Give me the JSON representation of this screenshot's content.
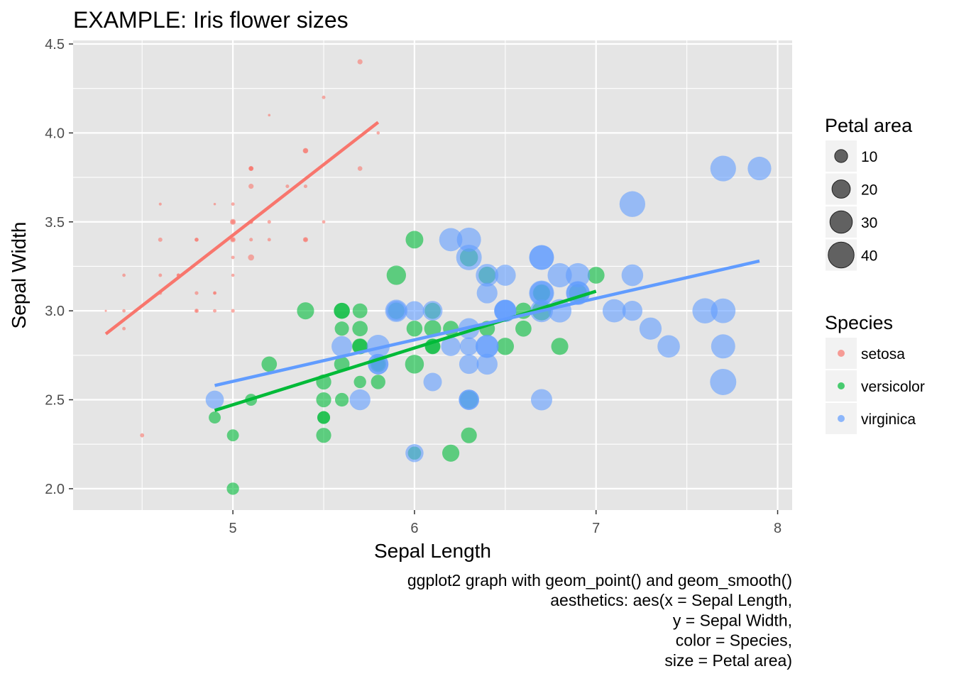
{
  "chart_data": {
    "type": "scatter",
    "title": "EXAMPLE: Iris flower sizes",
    "xlabel": "Sepal Length",
    "ylabel": "Sepal Width",
    "caption": [
      "ggplot2 graph with geom_point() and geom_smooth()",
      "aesthetics: aes(x = Sepal Length,",
      "y = Sepal Width,",
      "color = Species,",
      "size = Petal area)"
    ],
    "xlim": [
      4.12,
      8.08
    ],
    "ylim": [
      1.88,
      4.52
    ],
    "x_ticks": [
      5,
      6,
      7,
      8
    ],
    "x_tick_labels": [
      "5",
      "6",
      "7",
      "8"
    ],
    "y_ticks": [
      2.0,
      2.5,
      3.0,
      3.5,
      4.0,
      4.5
    ],
    "y_tick_labels": [
      "2.0",
      "2.5",
      "3.0",
      "3.5",
      "4.0",
      "4.5"
    ],
    "grid": true,
    "background": "#e5e5e5",
    "legend_position": "right",
    "size_legend": {
      "title": "Petal area",
      "breaks": [
        10,
        20,
        30,
        40
      ],
      "labels": [
        "10",
        "20",
        "30",
        "40"
      ],
      "color": "#000000"
    },
    "color_legend": {
      "title": "Species",
      "labels": [
        "setosa",
        "versicolor",
        "virginica"
      ]
    },
    "series": [
      {
        "name": "setosa",
        "color": "#F8766D",
        "points": [
          {
            "x": 4.3,
            "y": 3.0,
            "size": 0.11
          },
          {
            "x": 4.4,
            "y": 2.9,
            "size": 0.28
          },
          {
            "x": 4.4,
            "y": 3.0,
            "size": 0.26
          },
          {
            "x": 4.4,
            "y": 3.2,
            "size": 0.26
          },
          {
            "x": 4.5,
            "y": 2.3,
            "size": 0.39
          },
          {
            "x": 4.6,
            "y": 3.1,
            "size": 0.3
          },
          {
            "x": 4.6,
            "y": 3.2,
            "size": 0.28
          },
          {
            "x": 4.6,
            "y": 3.4,
            "size": 0.42
          },
          {
            "x": 4.6,
            "y": 3.6,
            "size": 0.2
          },
          {
            "x": 4.7,
            "y": 3.2,
            "size": 0.26
          },
          {
            "x": 4.7,
            "y": 3.2,
            "size": 0.32
          },
          {
            "x": 4.8,
            "y": 3.4,
            "size": 0.32
          },
          {
            "x": 4.8,
            "y": 3.0,
            "size": 0.14
          },
          {
            "x": 4.8,
            "y": 3.4,
            "size": 0.38
          },
          {
            "x": 4.8,
            "y": 3.0,
            "size": 0.42
          },
          {
            "x": 4.8,
            "y": 3.1,
            "size": 0.32
          },
          {
            "x": 4.9,
            "y": 3.0,
            "size": 0.28
          },
          {
            "x": 4.9,
            "y": 3.1,
            "size": 0.15
          },
          {
            "x": 4.9,
            "y": 3.1,
            "size": 0.3
          },
          {
            "x": 4.9,
            "y": 3.6,
            "size": 0.14
          },
          {
            "x": 5.0,
            "y": 3.6,
            "size": 0.28
          },
          {
            "x": 5.0,
            "y": 3.4,
            "size": 0.3
          },
          {
            "x": 5.0,
            "y": 3.0,
            "size": 0.32
          },
          {
            "x": 5.0,
            "y": 3.4,
            "size": 0.64
          },
          {
            "x": 5.0,
            "y": 3.2,
            "size": 0.24
          },
          {
            "x": 5.0,
            "y": 3.5,
            "size": 0.78
          },
          {
            "x": 5.0,
            "y": 3.5,
            "size": 0.39
          },
          {
            "x": 5.0,
            "y": 3.3,
            "size": 0.28
          },
          {
            "x": 5.1,
            "y": 3.5,
            "size": 0.28
          },
          {
            "x": 5.1,
            "y": 3.5,
            "size": 0.42
          },
          {
            "x": 5.1,
            "y": 3.8,
            "size": 0.57
          },
          {
            "x": 5.1,
            "y": 3.7,
            "size": 0.6
          },
          {
            "x": 5.1,
            "y": 3.3,
            "size": 0.85
          },
          {
            "x": 5.1,
            "y": 3.4,
            "size": 0.3
          },
          {
            "x": 5.1,
            "y": 3.8,
            "size": 0.48
          },
          {
            "x": 5.1,
            "y": 3.8,
            "size": 0.32
          },
          {
            "x": 5.2,
            "y": 3.5,
            "size": 0.3
          },
          {
            "x": 5.2,
            "y": 3.4,
            "size": 0.28
          },
          {
            "x": 5.2,
            "y": 4.1,
            "size": 0.15
          },
          {
            "x": 5.3,
            "y": 3.7,
            "size": 0.3
          },
          {
            "x": 5.4,
            "y": 3.9,
            "size": 0.68
          },
          {
            "x": 5.4,
            "y": 3.7,
            "size": 0.3
          },
          {
            "x": 5.4,
            "y": 3.9,
            "size": 0.52
          },
          {
            "x": 5.4,
            "y": 3.4,
            "size": 0.34
          },
          {
            "x": 5.4,
            "y": 3.4,
            "size": 0.6
          },
          {
            "x": 5.5,
            "y": 4.2,
            "size": 0.28
          },
          {
            "x": 5.5,
            "y": 3.5,
            "size": 0.26
          },
          {
            "x": 5.7,
            "y": 4.4,
            "size": 0.6
          },
          {
            "x": 5.7,
            "y": 3.8,
            "size": 0.51
          },
          {
            "x": 5.8,
            "y": 4.0,
            "size": 0.24
          }
        ],
        "trend": {
          "x": [
            4.3,
            5.8
          ],
          "y": [
            2.87,
            4.06
          ]
        }
      },
      {
        "name": "versicolor",
        "color": "#00BA38",
        "points": [
          {
            "x": 4.9,
            "y": 2.4,
            "size": 3.3
          },
          {
            "x": 5.0,
            "y": 2.3,
            "size": 3.3
          },
          {
            "x": 5.0,
            "y": 2.0,
            "size": 3.5
          },
          {
            "x": 5.1,
            "y": 2.5,
            "size": 3.3
          },
          {
            "x": 5.2,
            "y": 2.7,
            "size": 5.46
          },
          {
            "x": 5.4,
            "y": 3.0,
            "size": 6.75
          },
          {
            "x": 5.5,
            "y": 2.3,
            "size": 5.2
          },
          {
            "x": 5.5,
            "y": 2.4,
            "size": 3.7
          },
          {
            "x": 5.5,
            "y": 2.4,
            "size": 3.8
          },
          {
            "x": 5.5,
            "y": 2.5,
            "size": 5.2
          },
          {
            "x": 5.5,
            "y": 2.6,
            "size": 5.28
          },
          {
            "x": 5.6,
            "y": 2.9,
            "size": 4.68
          },
          {
            "x": 5.6,
            "y": 3.0,
            "size": 5.85
          },
          {
            "x": 5.6,
            "y": 2.5,
            "size": 4.29
          },
          {
            "x": 5.6,
            "y": 3.0,
            "size": 5.85
          },
          {
            "x": 5.6,
            "y": 2.7,
            "size": 5.46
          },
          {
            "x": 5.7,
            "y": 2.8,
            "size": 5.85
          },
          {
            "x": 5.7,
            "y": 2.6,
            "size": 3.5
          },
          {
            "x": 5.7,
            "y": 3.0,
            "size": 5.04
          },
          {
            "x": 5.7,
            "y": 2.9,
            "size": 5.46
          },
          {
            "x": 5.7,
            "y": 2.8,
            "size": 5.2
          },
          {
            "x": 5.8,
            "y": 2.7,
            "size": 4.1
          },
          {
            "x": 5.8,
            "y": 2.7,
            "size": 5.85
          },
          {
            "x": 5.8,
            "y": 2.6,
            "size": 4.8
          },
          {
            "x": 5.9,
            "y": 3.0,
            "size": 6.3
          },
          {
            "x": 5.9,
            "y": 3.2,
            "size": 8.64
          },
          {
            "x": 6.0,
            "y": 2.2,
            "size": 4.0
          },
          {
            "x": 6.0,
            "y": 2.9,
            "size": 5.85
          },
          {
            "x": 6.0,
            "y": 2.7,
            "size": 8.16
          },
          {
            "x": 6.0,
            "y": 3.4,
            "size": 7.2
          },
          {
            "x": 6.1,
            "y": 2.9,
            "size": 6.58
          },
          {
            "x": 6.1,
            "y": 2.8,
            "size": 5.2
          },
          {
            "x": 6.1,
            "y": 2.8,
            "size": 5.64
          },
          {
            "x": 6.1,
            "y": 3.0,
            "size": 5.98
          },
          {
            "x": 6.2,
            "y": 2.2,
            "size": 6.75
          },
          {
            "x": 6.2,
            "y": 2.9,
            "size": 5.59
          },
          {
            "x": 6.3,
            "y": 3.3,
            "size": 7.52
          },
          {
            "x": 6.3,
            "y": 2.5,
            "size": 7.35
          },
          {
            "x": 6.3,
            "y": 2.3,
            "size": 5.72
          },
          {
            "x": 6.4,
            "y": 3.2,
            "size": 6.75
          },
          {
            "x": 6.4,
            "y": 2.9,
            "size": 5.59
          },
          {
            "x": 6.5,
            "y": 2.8,
            "size": 6.9
          },
          {
            "x": 6.6,
            "y": 2.9,
            "size": 5.98
          },
          {
            "x": 6.6,
            "y": 3.0,
            "size": 6.16
          },
          {
            "x": 6.7,
            "y": 3.1,
            "size": 6.16
          },
          {
            "x": 6.7,
            "y": 3.0,
            "size": 8.5
          },
          {
            "x": 6.7,
            "y": 3.1,
            "size": 7.05
          },
          {
            "x": 6.8,
            "y": 2.8,
            "size": 6.72
          },
          {
            "x": 6.9,
            "y": 3.1,
            "size": 7.35
          },
          {
            "x": 7.0,
            "y": 3.2,
            "size": 6.58
          }
        ],
        "trend": {
          "x": [
            4.9,
            7.0
          ],
          "y": [
            2.44,
            3.11
          ]
        }
      },
      {
        "name": "virginica",
        "color": "#619CFF",
        "points": [
          {
            "x": 4.9,
            "y": 2.5,
            "size": 7.65
          },
          {
            "x": 5.6,
            "y": 2.8,
            "size": 9.8
          },
          {
            "x": 5.7,
            "y": 2.5,
            "size": 10.0
          },
          {
            "x": 5.8,
            "y": 2.7,
            "size": 9.69
          },
          {
            "x": 5.8,
            "y": 2.8,
            "size": 12.24
          },
          {
            "x": 5.8,
            "y": 2.7,
            "size": 9.69
          },
          {
            "x": 5.9,
            "y": 3.0,
            "size": 11.5
          },
          {
            "x": 5.9,
            "y": 3.0,
            "size": 9.18
          },
          {
            "x": 6.0,
            "y": 2.2,
            "size": 7.5
          },
          {
            "x": 6.0,
            "y": 3.0,
            "size": 8.64
          },
          {
            "x": 6.1,
            "y": 3.0,
            "size": 8.96
          },
          {
            "x": 6.1,
            "y": 2.6,
            "size": 7.84
          },
          {
            "x": 6.2,
            "y": 2.8,
            "size": 8.64
          },
          {
            "x": 6.2,
            "y": 3.4,
            "size": 12.42
          },
          {
            "x": 6.3,
            "y": 3.3,
            "size": 15.0
          },
          {
            "x": 6.3,
            "y": 2.9,
            "size": 10.08
          },
          {
            "x": 6.3,
            "y": 2.5,
            "size": 9.5
          },
          {
            "x": 6.3,
            "y": 2.7,
            "size": 8.82
          },
          {
            "x": 6.3,
            "y": 2.8,
            "size": 7.65
          },
          {
            "x": 6.3,
            "y": 3.4,
            "size": 13.44
          },
          {
            "x": 6.3,
            "y": 2.5,
            "size": 9.5
          },
          {
            "x": 6.4,
            "y": 2.7,
            "size": 10.07
          },
          {
            "x": 6.4,
            "y": 3.2,
            "size": 11.77
          },
          {
            "x": 6.4,
            "y": 2.8,
            "size": 11.76
          },
          {
            "x": 6.4,
            "y": 2.8,
            "size": 12.32
          },
          {
            "x": 6.4,
            "y": 3.1,
            "size": 9.9
          },
          {
            "x": 6.5,
            "y": 3.0,
            "size": 11.6
          },
          {
            "x": 6.5,
            "y": 3.2,
            "size": 10.2
          },
          {
            "x": 6.5,
            "y": 3.0,
            "size": 10.4
          },
          {
            "x": 6.5,
            "y": 3.0,
            "size": 11.0
          },
          {
            "x": 6.7,
            "y": 2.5,
            "size": 10.44
          },
          {
            "x": 6.7,
            "y": 3.3,
            "size": 14.25
          },
          {
            "x": 6.7,
            "y": 3.1,
            "size": 12.96
          },
          {
            "x": 6.7,
            "y": 3.3,
            "size": 13.75
          },
          {
            "x": 6.7,
            "y": 3.0,
            "size": 11.96
          },
          {
            "x": 6.7,
            "y": 3.1,
            "size": 14.4
          },
          {
            "x": 6.8,
            "y": 3.0,
            "size": 12.6
          },
          {
            "x": 6.8,
            "y": 3.2,
            "size": 13.57
          },
          {
            "x": 6.9,
            "y": 3.2,
            "size": 13.57
          },
          {
            "x": 6.9,
            "y": 3.1,
            "size": 12.21
          },
          {
            "x": 6.9,
            "y": 3.1,
            "size": 13.09
          },
          {
            "x": 7.1,
            "y": 3.0,
            "size": 12.39
          },
          {
            "x": 7.2,
            "y": 3.6,
            "size": 15.25
          },
          {
            "x": 7.2,
            "y": 3.2,
            "size": 10.8
          },
          {
            "x": 7.2,
            "y": 3.0,
            "size": 9.28
          },
          {
            "x": 7.3,
            "y": 2.9,
            "size": 11.34
          },
          {
            "x": 7.4,
            "y": 2.8,
            "size": 11.59
          },
          {
            "x": 7.6,
            "y": 3.0,
            "size": 14.7
          },
          {
            "x": 7.7,
            "y": 3.8,
            "size": 15.18
          },
          {
            "x": 7.7,
            "y": 2.6,
            "size": 15.87
          },
          {
            "x": 7.7,
            "y": 2.8,
            "size": 13.4
          },
          {
            "x": 7.7,
            "y": 3.0,
            "size": 14.03
          },
          {
            "x": 7.9,
            "y": 3.8,
            "size": 12.8
          }
        ],
        "trend": {
          "x": [
            4.9,
            7.9
          ],
          "y": [
            2.58,
            3.28
          ]
        }
      }
    ]
  }
}
